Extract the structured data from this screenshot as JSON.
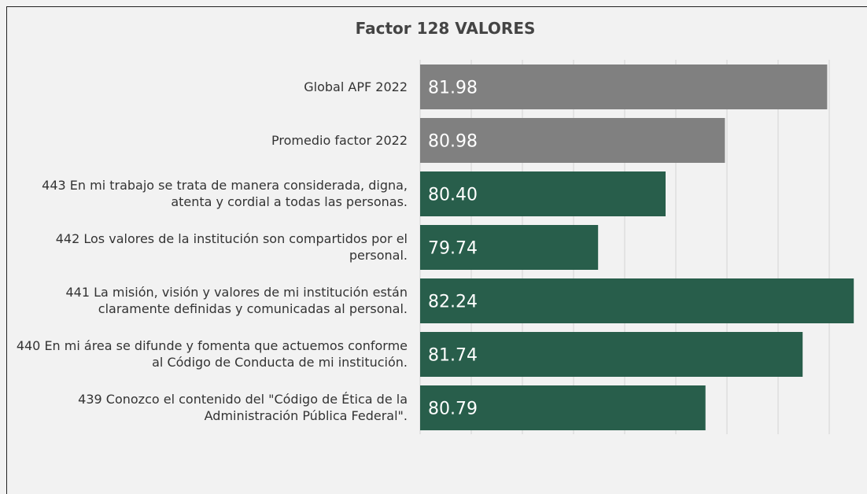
{
  "chart_data": {
    "type": "barh",
    "title": "Factor 128 VALORES",
    "categories": [
      "Global APF 2022",
      "Promedio factor 2022",
      "443 En mi trabajo se trata de manera considerada, digna, atenta y cordial a todas las personas.",
      "442 Los valores de la institución son compartidos por el personal.",
      "441 La misión, visión y valores de mi institución están claramente definidas y comunicadas al personal.",
      "440 En mi área se difunde y fomenta que actuemos conforme al Código de Conducta de mi institución.",
      "439 Conozco el contenido del \"Código de Ética de la Administración Pública Federal\"."
    ],
    "values": [
      81.98,
      80.98,
      80.4,
      79.74,
      82.24,
      81.74,
      80.79
    ],
    "value_labels": [
      "81.98",
      "80.98",
      "80.40",
      "79.74",
      "82.24",
      "81.74",
      "80.79"
    ],
    "colors": [
      "#808080",
      "#808080",
      "#285e4b",
      "#285e4b",
      "#285e4b",
      "#285e4b",
      "#285e4b"
    ],
    "xlim": [
      78,
      82.3
    ],
    "xticks": [
      78,
      78.5,
      79,
      79.5,
      80,
      80.5,
      81,
      81.5,
      82
    ],
    "grid": true
  }
}
